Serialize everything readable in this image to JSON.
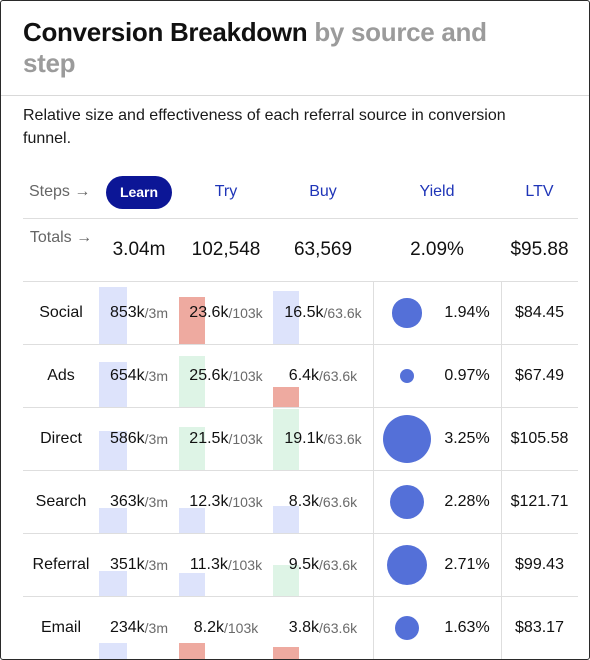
{
  "header": {
    "title": "Conversion Breakdown",
    "subtitle": "by source and step",
    "description": "Relative size and effectiveness of each referral source in conversion funnel."
  },
  "columns": {
    "steps_label": "Steps →",
    "learn": "Learn",
    "try": "Try",
    "buy": "Buy",
    "yield": "Yield",
    "ltv": "LTV"
  },
  "totals": {
    "label": "Totals →",
    "learn": "3.04m",
    "try": "102,548",
    "buy": "63,569",
    "yield": "2.09%",
    "ltv": "$95.88"
  },
  "colors": {
    "accent": "#1f35b8",
    "pill": "#0c1696",
    "bubble": "#5470d8",
    "bar_blue": "#dde3fb",
    "bar_green": "#def4e6",
    "bar_red": "#eeaaa0"
  },
  "rows": [
    {
      "source": "Social",
      "learn": "853k",
      "learn_of": "/3m",
      "learn_frac": 0.28,
      "learn_trend": "blue",
      "try": "23.6k",
      "try_of": "/103k",
      "try_frac": 0.23,
      "try_trend": "red",
      "buy": "16.5k",
      "buy_of": "/63.6k",
      "buy_frac": 0.26,
      "buy_trend": "blue",
      "yield": "1.94%",
      "yield_value": 1.94,
      "ltv": "$84.45"
    },
    {
      "source": "Ads",
      "learn": "654k",
      "learn_of": "/3m",
      "learn_frac": 0.22,
      "learn_trend": "blue",
      "try": "25.6k",
      "try_of": "/103k",
      "try_frac": 0.25,
      "try_trend": "green",
      "buy": "6.4k",
      "buy_of": "/63.6k",
      "buy_frac": 0.1,
      "buy_trend": "red",
      "yield": "0.97%",
      "yield_value": 0.97,
      "ltv": "$67.49"
    },
    {
      "source": "Direct",
      "learn": "586k",
      "learn_of": "/3m",
      "learn_frac": 0.19,
      "learn_trend": "blue",
      "try": "21.5k",
      "try_of": "/103k",
      "try_frac": 0.21,
      "try_trend": "green",
      "buy": "19.1k",
      "buy_of": "/63.6k",
      "buy_frac": 0.3,
      "buy_trend": "green",
      "yield": "3.25%",
      "yield_value": 3.25,
      "ltv": "$105.58"
    },
    {
      "source": "Search",
      "learn": "363k",
      "learn_of": "/3m",
      "learn_frac": 0.12,
      "learn_trend": "blue",
      "try": "12.3k",
      "try_of": "/103k",
      "try_frac": 0.12,
      "try_trend": "blue",
      "buy": "8.3k",
      "buy_of": "/63.6k",
      "buy_frac": 0.13,
      "buy_trend": "blue",
      "yield": "2.28%",
      "yield_value": 2.28,
      "ltv": "$121.71"
    },
    {
      "source": "Referral",
      "learn": "351k",
      "learn_of": "/3m",
      "learn_frac": 0.12,
      "learn_trend": "blue",
      "try": "11.3k",
      "try_of": "/103k",
      "try_frac": 0.11,
      "try_trend": "blue",
      "buy": "9.5k",
      "buy_of": "/63.6k",
      "buy_frac": 0.15,
      "buy_trend": "green",
      "yield": "2.71%",
      "yield_value": 2.71,
      "ltv": "$99.43"
    },
    {
      "source": "Email",
      "learn": "234k",
      "learn_of": "/3m",
      "learn_frac": 0.08,
      "learn_trend": "blue",
      "try": "8.2k",
      "try_of": "/103k",
      "try_frac": 0.08,
      "try_trend": "red",
      "buy": "3.8k",
      "buy_of": "/63.6k",
      "buy_frac": 0.06,
      "buy_trend": "red",
      "yield": "1.63%",
      "yield_value": 1.63,
      "ltv": "$83.17"
    }
  ]
}
